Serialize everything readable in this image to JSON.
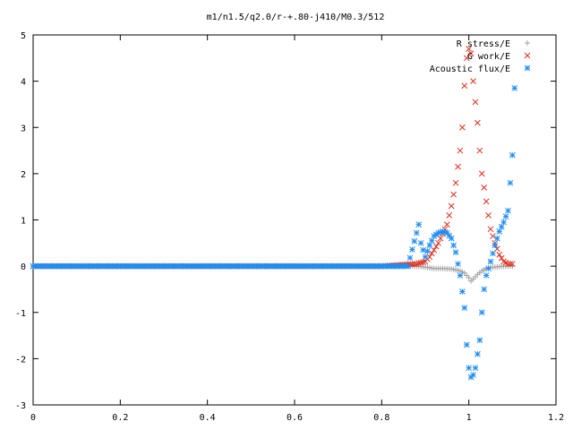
{
  "chart_data": {
    "type": "scatter",
    "title": "m1/n1.5/q2.0/r-+.80-j410/M0.3/512",
    "xlabel": "",
    "ylabel": "",
    "xlim": [
      0,
      1.2
    ],
    "ylim": [
      -3,
      5
    ],
    "x_ticks": [
      "0",
      "0.2",
      "0.4",
      "0.6",
      "0.8",
      "1",
      "1.2"
    ],
    "y_ticks": [
      "5",
      "4",
      "3",
      "2",
      "1",
      "0",
      "-1",
      "-2",
      "-3"
    ],
    "grid": false,
    "legend_position": "top-right",
    "series": [
      {
        "name": "R stress/E",
        "marker": "plus",
        "color": "#a0a0a0",
        "x": [
          0.0,
          0.1,
          0.2,
          0.3,
          0.4,
          0.5,
          0.6,
          0.7,
          0.8,
          0.88,
          0.9,
          0.92,
          0.94,
          0.96,
          0.98,
          0.99,
          1.0,
          1.005,
          1.01,
          1.02,
          1.03,
          1.04,
          1.05,
          1.06,
          1.08,
          1.1
        ],
        "y": [
          0.0,
          0.0,
          0.0,
          0.0,
          0.0,
          0.0,
          0.0,
          0.0,
          0.0,
          0.0,
          -0.02,
          -0.05,
          -0.05,
          -0.06,
          -0.1,
          -0.15,
          -0.25,
          -0.32,
          -0.28,
          -0.18,
          -0.1,
          -0.05,
          -0.03,
          -0.02,
          0.0,
          0.0
        ]
      },
      {
        "name": "G work/E",
        "marker": "x",
        "color": "#e0301e",
        "x": [
          0.0,
          0.1,
          0.2,
          0.3,
          0.4,
          0.5,
          0.6,
          0.7,
          0.8,
          0.88,
          0.9,
          0.91,
          0.92,
          0.93,
          0.94,
          0.95,
          0.96,
          0.97,
          0.98,
          0.985,
          0.99,
          0.995,
          1.0,
          1.005,
          1.01,
          1.02,
          1.025,
          1.03,
          1.04,
          1.05,
          1.06,
          1.07,
          1.08,
          1.09,
          1.1
        ],
        "y": [
          0.0,
          0.0,
          0.0,
          0.0,
          0.0,
          0.0,
          0.0,
          0.0,
          0.0,
          0.05,
          0.1,
          0.2,
          0.35,
          0.5,
          0.7,
          0.9,
          1.3,
          1.8,
          2.5,
          3.0,
          3.9,
          4.5,
          4.7,
          4.6,
          4.0,
          3.1,
          2.5,
          2.0,
          1.4,
          0.8,
          0.5,
          0.25,
          0.1,
          0.05,
          0.05
        ]
      },
      {
        "name": "Acoustic flux/E",
        "marker": "star",
        "color": "#1f8ef2",
        "x": [
          0.0,
          0.1,
          0.2,
          0.3,
          0.4,
          0.5,
          0.6,
          0.7,
          0.8,
          0.86,
          0.885,
          0.89,
          0.9,
          0.91,
          0.92,
          0.93,
          0.94,
          0.95,
          0.96,
          0.97,
          0.98,
          0.99,
          0.995,
          1.0,
          1.005,
          1.01,
          1.015,
          1.02,
          1.025,
          1.03,
          1.035,
          1.04,
          1.05,
          1.06,
          1.07,
          1.08,
          1.09,
          1.1,
          1.105
        ],
        "y": [
          0.0,
          0.0,
          0.0,
          0.0,
          0.0,
          0.0,
          0.0,
          0.0,
          0.0,
          0.0,
          0.9,
          0.5,
          0.2,
          0.45,
          0.65,
          0.72,
          0.75,
          0.72,
          0.6,
          0.3,
          -0.2,
          -0.9,
          -1.7,
          -2.2,
          -2.4,
          -2.35,
          -2.2,
          -1.9,
          -1.6,
          -1.0,
          -0.5,
          -0.2,
          0.1,
          0.45,
          0.75,
          0.95,
          1.2,
          2.4,
          3.85
        ]
      }
    ]
  }
}
